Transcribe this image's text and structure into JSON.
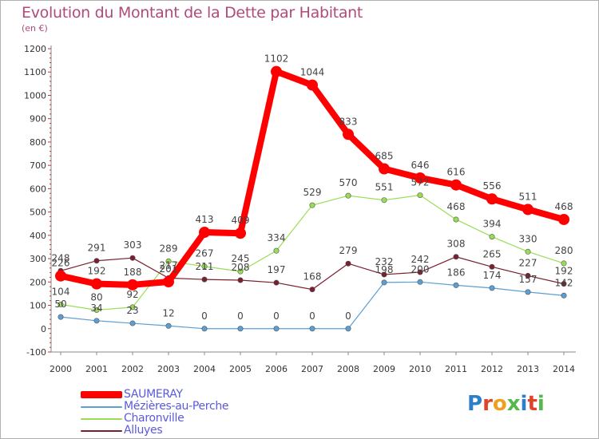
{
  "title": "Evolution du Montant de la Dette par Habitant",
  "unit_label": "(en €)",
  "brand": {
    "text": "Proxiti",
    "letters": [
      {
        "ch": "P",
        "color": "#2e7fc9"
      },
      {
        "ch": "r",
        "color": "#e0432c"
      },
      {
        "ch": "o",
        "color": "#f0a020"
      },
      {
        "ch": "x",
        "color": "#55b84a"
      },
      {
        "ch": "i",
        "color": "#2e7fc9"
      },
      {
        "ch": "t",
        "color": "#e0432c"
      },
      {
        "ch": "i",
        "color": "#55b84a"
      }
    ]
  },
  "chart_data": {
    "type": "line",
    "x": [
      "2000",
      "2001",
      "2002",
      "2003",
      "2004",
      "2005",
      "2006",
      "2007",
      "2008",
      "2009",
      "2010",
      "2011",
      "2012",
      "2013",
      "2014"
    ],
    "ylim": [
      -100,
      1200
    ],
    "yticks": [
      -100,
      0,
      100,
      200,
      300,
      400,
      500,
      600,
      700,
      800,
      900,
      1000,
      1100,
      1200
    ],
    "grid": false,
    "legend_position": "bottom-left",
    "series": [
      {
        "name": "SAUMERAY",
        "color": "#ff0000",
        "values": [
          226,
          192,
          188,
          201,
          413,
          409,
          1102,
          1044,
          833,
          685,
          646,
          616,
          556,
          511,
          468
        ]
      },
      {
        "name": "Mézières-au-Perche",
        "color": "#5b9fd4",
        "values": [
          50,
          34,
          23,
          12,
          0,
          0,
          0,
          0,
          0,
          198,
          200,
          186,
          174,
          157,
          142
        ]
      },
      {
        "name": "Charonville",
        "color": "#99dd55",
        "values": [
          104,
          80,
          92,
          289,
          267,
          245,
          334,
          529,
          570,
          551,
          572,
          468,
          394,
          330,
          280
        ]
      },
      {
        "name": "Alluyes",
        "color": "#7a1f2e",
        "values": [
          248,
          291,
          303,
          217,
          211,
          208,
          197,
          168,
          279,
          232,
          242,
          308,
          265,
          227,
          192
        ]
      }
    ],
    "data_labels": [
      {
        "series": 0,
        "labels": [
          "226",
          "192",
          "188",
          "201",
          "413",
          "409",
          "1102",
          "1044",
          "833",
          "685",
          "646",
          "616",
          "556",
          "511",
          "468"
        ]
      },
      {
        "series": 1,
        "labels": [
          "50",
          "34",
          "23",
          "12",
          "0",
          "0",
          "0",
          "0",
          "0",
          "198",
          "200",
          "186",
          "174",
          "157",
          "142"
        ]
      },
      {
        "series": 2,
        "labels": [
          "104",
          "80",
          "92",
          "289",
          "267",
          "245",
          "334",
          "529",
          "570",
          "551",
          "572",
          "468",
          "394",
          "330",
          "280"
        ]
      },
      {
        "series": 3,
        "labels": [
          "248",
          "291",
          "303",
          "217",
          "211",
          "208",
          "197",
          "168",
          "279",
          "232",
          "242",
          "308",
          "265",
          "227",
          "192"
        ]
      }
    ]
  }
}
